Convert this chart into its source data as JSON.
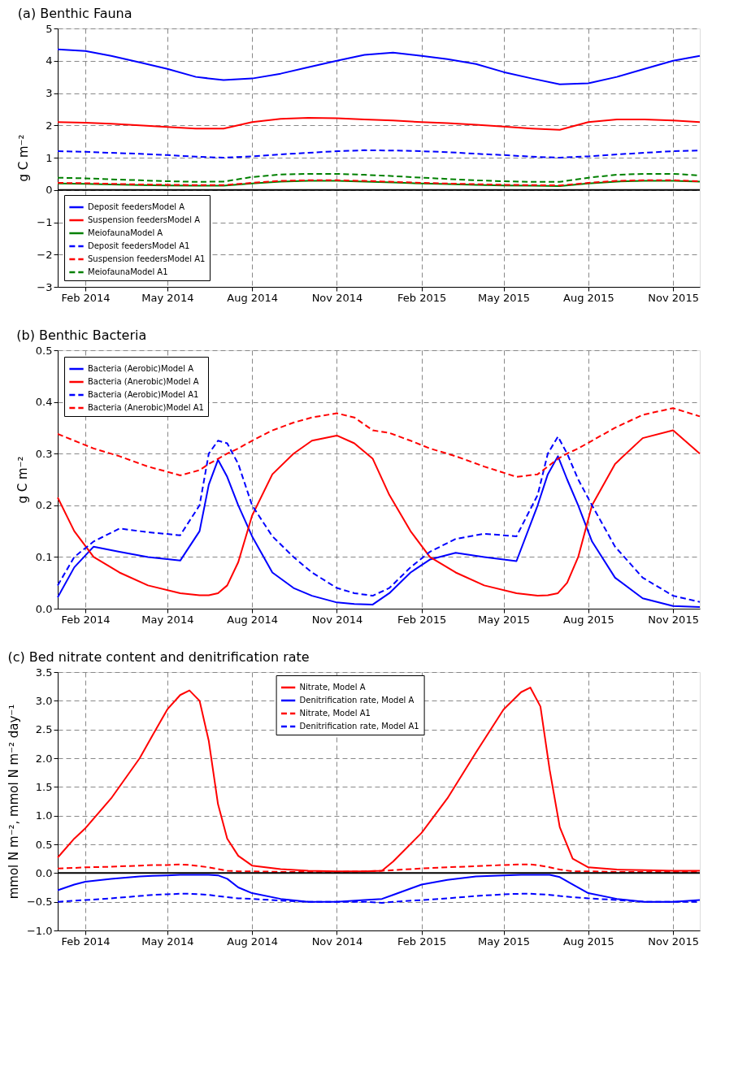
{
  "chart_data": [
    {
      "type": "line",
      "title": "(a) Benthic Fauna",
      "ylabel": "g C m⁻²",
      "x": [
        "2014-01-02",
        "2014-02-01",
        "2014-03-01",
        "2014-04-01",
        "2014-05-01",
        "2014-06-01",
        "2014-07-01",
        "2014-08-01",
        "2014-09-01",
        "2014-10-01",
        "2014-11-01",
        "2014-12-01",
        "2015-01-01",
        "2015-02-01",
        "2015-03-01",
        "2015-04-01",
        "2015-05-01",
        "2015-06-01",
        "2015-07-01",
        "2015-08-01",
        "2015-09-01",
        "2015-10-01",
        "2015-11-01",
        "2015-11-30"
      ],
      "series": [
        {
          "name": "Deposit feedersModel A",
          "color": "#0000ff",
          "line_style": "solid",
          "values": [
            4.35,
            4.3,
            4.15,
            3.95,
            3.75,
            3.5,
            3.4,
            3.45,
            3.6,
            3.8,
            4.0,
            4.18,
            4.25,
            4.15,
            4.05,
            3.9,
            3.65,
            3.45,
            3.27,
            3.3,
            3.5,
            3.75,
            4.0,
            4.15
          ]
        },
        {
          "name": "Suspension feedersModel A",
          "color": "#ff0000",
          "line_style": "solid",
          "values": [
            2.1,
            2.08,
            2.05,
            2.0,
            1.95,
            1.9,
            1.9,
            2.1,
            2.2,
            2.23,
            2.22,
            2.18,
            2.15,
            2.1,
            2.07,
            2.02,
            1.96,
            1.9,
            1.86,
            2.1,
            2.18,
            2.18,
            2.15,
            2.1
          ]
        },
        {
          "name": "MeiofaunaModel A",
          "color": "#008000",
          "line_style": "solid",
          "values": [
            0.2,
            0.19,
            0.17,
            0.15,
            0.14,
            0.13,
            0.13,
            0.2,
            0.26,
            0.28,
            0.28,
            0.26,
            0.23,
            0.2,
            0.18,
            0.16,
            0.14,
            0.13,
            0.12,
            0.2,
            0.26,
            0.28,
            0.28,
            0.26
          ]
        },
        {
          "name": "Deposit feedersModel A1",
          "color": "#0000ff",
          "line_style": "dashed",
          "values": [
            1.2,
            1.18,
            1.15,
            1.12,
            1.08,
            1.03,
            1.0,
            1.04,
            1.1,
            1.15,
            1.2,
            1.23,
            1.22,
            1.2,
            1.17,
            1.12,
            1.08,
            1.03,
            1.0,
            1.04,
            1.1,
            1.15,
            1.2,
            1.22
          ]
        },
        {
          "name": "Suspension feedersModel A1",
          "color": "#ff0000",
          "line_style": "dashed",
          "values": [
            0.22,
            0.21,
            0.19,
            0.17,
            0.16,
            0.15,
            0.15,
            0.22,
            0.28,
            0.3,
            0.3,
            0.28,
            0.25,
            0.22,
            0.2,
            0.18,
            0.16,
            0.15,
            0.14,
            0.22,
            0.28,
            0.3,
            0.3,
            0.27
          ]
        },
        {
          "name": "MeiofaunaModel A1",
          "color": "#008000",
          "line_style": "dashed",
          "values": [
            0.38,
            0.36,
            0.33,
            0.3,
            0.27,
            0.25,
            0.26,
            0.4,
            0.48,
            0.5,
            0.5,
            0.47,
            0.43,
            0.38,
            0.34,
            0.3,
            0.27,
            0.25,
            0.25,
            0.38,
            0.47,
            0.5,
            0.5,
            0.45
          ]
        }
      ],
      "xlim": [
        "2014-01-02",
        "2015-11-30"
      ],
      "xticks": [
        {
          "value": "2014-02-01",
          "label": "Feb 2014"
        },
        {
          "value": "2014-05-01",
          "label": "May 2014"
        },
        {
          "value": "2014-08-01",
          "label": "Aug 2014"
        },
        {
          "value": "2014-11-01",
          "label": "Nov 2014"
        },
        {
          "value": "2015-02-01",
          "label": "Feb 2015"
        },
        {
          "value": "2015-05-01",
          "label": "May 2015"
        },
        {
          "value": "2015-08-01",
          "label": "Aug 2015"
        },
        {
          "value": "2015-11-01",
          "label": "Nov 2015"
        }
      ],
      "ylim": [
        -3,
        5
      ],
      "yticks": [
        {
          "value": -3,
          "label": "−3"
        },
        {
          "value": -2,
          "label": "−2"
        },
        {
          "value": -1,
          "label": "−1"
        },
        0,
        1,
        2,
        3,
        4,
        5
      ],
      "ref_lines": [
        {
          "axis": "y",
          "value": 0,
          "color": "#000000",
          "line_style": "solid"
        }
      ],
      "grid": true,
      "legend": "bottom left",
      "marker": "none"
    },
    {
      "type": "line",
      "title": "(b) Benthic Bacteria",
      "ylabel": "g C m⁻²",
      "x": [
        "2014-01-02",
        "2014-01-20",
        "2014-02-10",
        "2014-03-10",
        "2014-04-10",
        "2014-05-15",
        "2014-06-05",
        "2014-06-15",
        "2014-06-25",
        "2014-07-05",
        "2014-07-17",
        "2014-08-01",
        "2014-08-23",
        "2014-09-15",
        "2014-10-05",
        "2014-11-01",
        "2014-11-20",
        "2014-12-10",
        "2014-12-28",
        "2015-01-20",
        "2015-02-10",
        "2015-03-10",
        "2015-04-10",
        "2015-05-15",
        "2015-06-07",
        "2015-06-18",
        "2015-06-29",
        "2015-07-09",
        "2015-07-21",
        "2015-08-05",
        "2015-08-30",
        "2015-09-29",
        "2015-11-01",
        "2015-11-30"
      ],
      "series": [
        {
          "name": "Bacteria (Aerobic)Model A",
          "color": "#0000ff",
          "line_style": "solid",
          "values": [
            0.022,
            0.08,
            0.12,
            0.11,
            0.1,
            0.093,
            0.15,
            0.24,
            0.288,
            0.255,
            0.2,
            0.14,
            0.07,
            0.04,
            0.025,
            0.012,
            0.009,
            0.008,
            0.03,
            0.07,
            0.095,
            0.108,
            0.1,
            0.092,
            0.2,
            0.26,
            0.295,
            0.25,
            0.2,
            0.13,
            0.06,
            0.02,
            0.005,
            0.003
          ]
        },
        {
          "name": "Bacteria (Anerobic)Model A",
          "color": "#ff0000",
          "line_style": "solid",
          "values": [
            0.215,
            0.15,
            0.1,
            0.07,
            0.045,
            0.03,
            0.026,
            0.026,
            0.03,
            0.045,
            0.09,
            0.18,
            0.26,
            0.3,
            0.325,
            0.335,
            0.32,
            0.29,
            0.22,
            0.15,
            0.1,
            0.07,
            0.045,
            0.03,
            0.025,
            0.026,
            0.03,
            0.05,
            0.1,
            0.2,
            0.28,
            0.33,
            0.345,
            0.3
          ]
        },
        {
          "name": "Bacteria (Aerobic)Model A1",
          "color": "#0000ff",
          "line_style": "dashed",
          "values": [
            0.045,
            0.1,
            0.13,
            0.155,
            0.148,
            0.142,
            0.2,
            0.3,
            0.325,
            0.32,
            0.28,
            0.2,
            0.14,
            0.1,
            0.07,
            0.04,
            0.03,
            0.025,
            0.04,
            0.08,
            0.11,
            0.135,
            0.145,
            0.14,
            0.22,
            0.3,
            0.333,
            0.3,
            0.25,
            0.2,
            0.12,
            0.06,
            0.025,
            0.013
          ]
        },
        {
          "name": "Bacteria (Anerobic)Model A1",
          "color": "#ff0000",
          "line_style": "dashed",
          "values": [
            0.338,
            0.325,
            0.31,
            0.295,
            0.275,
            0.258,
            0.268,
            0.28,
            0.29,
            0.3,
            0.31,
            0.325,
            0.345,
            0.36,
            0.37,
            0.378,
            0.37,
            0.345,
            0.34,
            0.325,
            0.31,
            0.295,
            0.275,
            0.255,
            0.26,
            0.275,
            0.29,
            0.3,
            0.31,
            0.325,
            0.35,
            0.375,
            0.388,
            0.372
          ]
        }
      ],
      "xlim": [
        "2014-01-02",
        "2015-11-30"
      ],
      "xticks": [
        {
          "value": "2014-02-01",
          "label": "Feb 2014"
        },
        {
          "value": "2014-05-01",
          "label": "May 2014"
        },
        {
          "value": "2014-08-01",
          "label": "Aug 2014"
        },
        {
          "value": "2014-11-01",
          "label": "Nov 2014"
        },
        {
          "value": "2015-02-01",
          "label": "Feb 2015"
        },
        {
          "value": "2015-05-01",
          "label": "May 2015"
        },
        {
          "value": "2015-08-01",
          "label": "Aug 2015"
        },
        {
          "value": "2015-11-01",
          "label": "Nov 2015"
        }
      ],
      "ylim": [
        0,
        0.5
      ],
      "yticks": [
        {
          "value": 0,
          "label": "0.0"
        },
        0.1,
        0.2,
        0.3,
        0.4,
        0.5
      ],
      "grid": true,
      "legend": "top left",
      "marker": "none"
    },
    {
      "type": "line",
      "title": "(c) Bed nitrate content and denitrification rate",
      "ylabel": "mmol N m⁻², mmol N m⁻² day⁻¹",
      "x": [
        "2014-01-02",
        "2014-01-20",
        "2014-02-01",
        "2014-03-01",
        "2014-04-01",
        "2014-04-15",
        "2014-05-01",
        "2014-05-15",
        "2014-05-25",
        "2014-06-05",
        "2014-06-15",
        "2014-06-25",
        "2014-07-05",
        "2014-07-17",
        "2014-08-01",
        "2014-09-01",
        "2014-10-01",
        "2014-11-01",
        "2014-12-01",
        "2014-12-20",
        "2015-01-01",
        "2015-02-01",
        "2015-03-01",
        "2015-04-01",
        "2015-05-01",
        "2015-05-20",
        "2015-05-30",
        "2015-06-10",
        "2015-06-20",
        "2015-07-01",
        "2015-07-15",
        "2015-08-01",
        "2015-09-01",
        "2015-10-01",
        "2015-11-01",
        "2015-11-30"
      ],
      "series": [
        {
          "name": "Nitrate, Model A",
          "color": "#ff0000",
          "line_style": "solid",
          "values": [
            0.27,
            0.6,
            0.78,
            1.3,
            2.0,
            2.4,
            2.85,
            3.1,
            3.18,
            3.0,
            2.3,
            1.2,
            0.6,
            0.3,
            0.13,
            0.07,
            0.04,
            0.03,
            0.03,
            0.04,
            0.2,
            0.7,
            1.3,
            2.1,
            2.85,
            3.15,
            3.23,
            2.9,
            1.8,
            0.8,
            0.25,
            0.1,
            0.06,
            0.05,
            0.04,
            0.04
          ]
        },
        {
          "name": "Denitrification rate, Model A",
          "color": "#0000ff",
          "line_style": "solid",
          "values": [
            -0.3,
            -0.2,
            -0.15,
            -0.1,
            -0.06,
            -0.05,
            -0.04,
            -0.03,
            -0.03,
            -0.03,
            -0.03,
            -0.04,
            -0.1,
            -0.25,
            -0.35,
            -0.45,
            -0.5,
            -0.5,
            -0.47,
            -0.45,
            -0.38,
            -0.2,
            -0.12,
            -0.06,
            -0.04,
            -0.03,
            -0.03,
            -0.03,
            -0.03,
            -0.07,
            -0.2,
            -0.35,
            -0.45,
            -0.5,
            -0.5,
            -0.47
          ]
        },
        {
          "name": "Nitrate, Model A1",
          "color": "#ff0000",
          "line_style": "dashed",
          "values": [
            0.08,
            0.09,
            0.1,
            0.11,
            0.13,
            0.14,
            0.14,
            0.15,
            0.14,
            0.12,
            0.1,
            0.07,
            0.04,
            0.03,
            0.03,
            0.02,
            0.02,
            0.02,
            0.03,
            0.04,
            0.05,
            0.08,
            0.1,
            0.12,
            0.14,
            0.15,
            0.15,
            0.13,
            0.1,
            0.06,
            0.03,
            0.03,
            0.02,
            0.02,
            0.02,
            0.02
          ]
        },
        {
          "name": "Denitrification rate, Model A1",
          "color": "#0000ff",
          "line_style": "dashed",
          "values": [
            -0.5,
            -0.48,
            -0.47,
            -0.44,
            -0.4,
            -0.38,
            -0.37,
            -0.36,
            -0.36,
            -0.37,
            -0.38,
            -0.4,
            -0.42,
            -0.44,
            -0.45,
            -0.48,
            -0.5,
            -0.5,
            -0.5,
            -0.52,
            -0.5,
            -0.47,
            -0.44,
            -0.4,
            -0.37,
            -0.36,
            -0.36,
            -0.37,
            -0.38,
            -0.4,
            -0.42,
            -0.44,
            -0.47,
            -0.5,
            -0.5,
            -0.5
          ]
        }
      ],
      "xlim": [
        "2014-01-02",
        "2015-11-30"
      ],
      "xticks": [
        {
          "value": "2014-02-01",
          "label": "Feb 2014"
        },
        {
          "value": "2014-05-01",
          "label": "May 2014"
        },
        {
          "value": "2014-08-01",
          "label": "Aug 2014"
        },
        {
          "value": "2014-11-01",
          "label": "Nov 2014"
        },
        {
          "value": "2015-02-01",
          "label": "Feb 2015"
        },
        {
          "value": "2015-05-01",
          "label": "May 2015"
        },
        {
          "value": "2015-08-01",
          "label": "Aug 2015"
        },
        {
          "value": "2015-11-01",
          "label": "Nov 2015"
        }
      ],
      "ylim": [
        -1.0,
        3.5
      ],
      "yticks": [
        {
          "value": -1.0,
          "label": "−1.0"
        },
        {
          "value": -0.5,
          "label": "−0.5"
        },
        {
          "value": 0,
          "label": "0.0"
        },
        0.5,
        {
          "value": 1.0,
          "label": "1.0"
        },
        1.5,
        {
          "value": 2.0,
          "label": "2.0"
        },
        2.5,
        {
          "value": 3.0,
          "label": "3.0"
        },
        3.5
      ],
      "ref_lines": [
        {
          "axis": "y",
          "value": 0,
          "color": "#000000",
          "line_style": "solid"
        }
      ],
      "grid": true,
      "legend": "top",
      "marker": "none"
    }
  ]
}
